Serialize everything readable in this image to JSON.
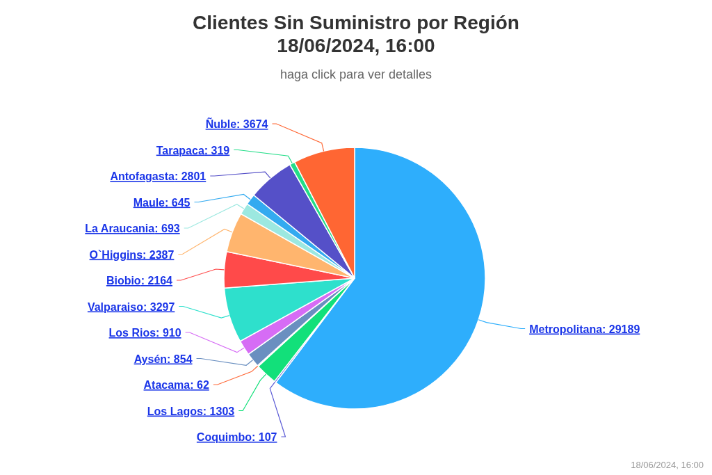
{
  "chart_data": {
    "type": "pie",
    "title": "Clientes Sin Suministro por Región\n18/06/2024, 16:00",
    "subtitle": "haga click para ver detalles",
    "categories": [
      "Metropolitana",
      "Coquimbo",
      "Los Lagos",
      "Atacama",
      "Aysén",
      "Los Rios",
      "Valparaiso",
      "Biobio",
      "O`Higgins",
      "La Araucania",
      "Maule",
      "Antofagasta",
      "Tarapaca",
      "Ñuble"
    ],
    "values": [
      29189,
      107,
      1303,
      62,
      854,
      910,
      3297,
      2164,
      2387,
      693,
      645,
      2801,
      319,
      3674
    ],
    "colors": [
      "#2eaefc",
      "#5b5bd6",
      "#12e07a",
      "#ff6a3a",
      "#6a8fc0",
      "#d66cf5",
      "#2ee0cc",
      "#ff4a4a",
      "#ffb56e",
      "#9ce8e0",
      "#33aaf0",
      "#5550c8",
      "#22dd88",
      "#ff6633"
    ],
    "value_labels": [
      ": 29189",
      ": 107",
      ": 1303",
      ": 62",
      ": 854",
      ": 910",
      ": 3297",
      ": 2164",
      ": 2387",
      ": 693",
      ": 645",
      ": 2801",
      ": 319",
      ": 3674"
    ],
    "annotations": [
      "18/06/2024, 16:00"
    ]
  }
}
